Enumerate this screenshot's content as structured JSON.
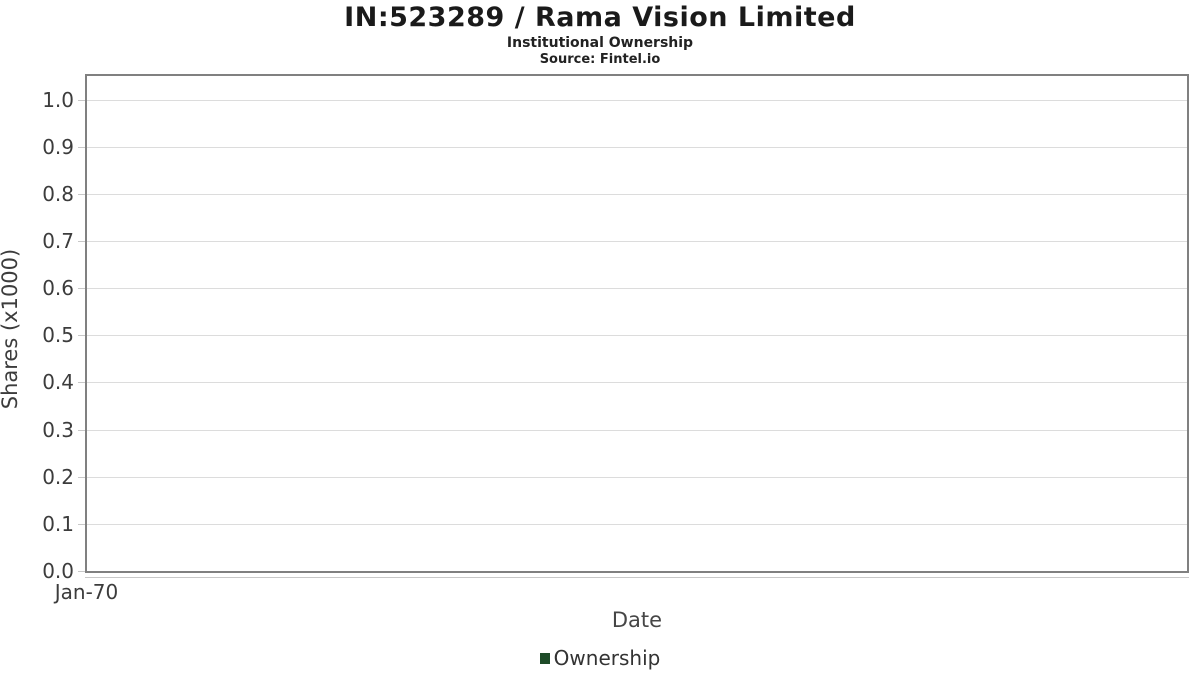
{
  "header": {
    "title": "IN:523289 / Rama Vision Limited",
    "subtitle": "Institutional Ownership",
    "source": "Source: Fintel.io"
  },
  "chart_data": {
    "type": "line",
    "title": "IN:523289 / Rama Vision Limited",
    "subtitle": "Institutional Ownership",
    "source": "Source: Fintel.io",
    "xlabel": "Date",
    "ylabel": "Shares (x1000)",
    "xticks": [
      "Jan-70"
    ],
    "yticks": [
      0.0,
      0.1,
      0.2,
      0.3,
      0.4,
      0.5,
      0.6,
      0.7,
      0.8,
      0.9,
      1.0
    ],
    "ylim": [
      0,
      1.05
    ],
    "grid": true,
    "legend_position": "bottom",
    "series": [
      {
        "name": "Ownership",
        "color": "#1e4b28",
        "x": [],
        "values": []
      }
    ],
    "colors": {
      "grid": "#dcdcdc",
      "plot_border": "#808080",
      "axis_line": "#c8c8c8",
      "tick_text": "#3c3c3c",
      "legend_swatch": "#1e4b28"
    }
  }
}
